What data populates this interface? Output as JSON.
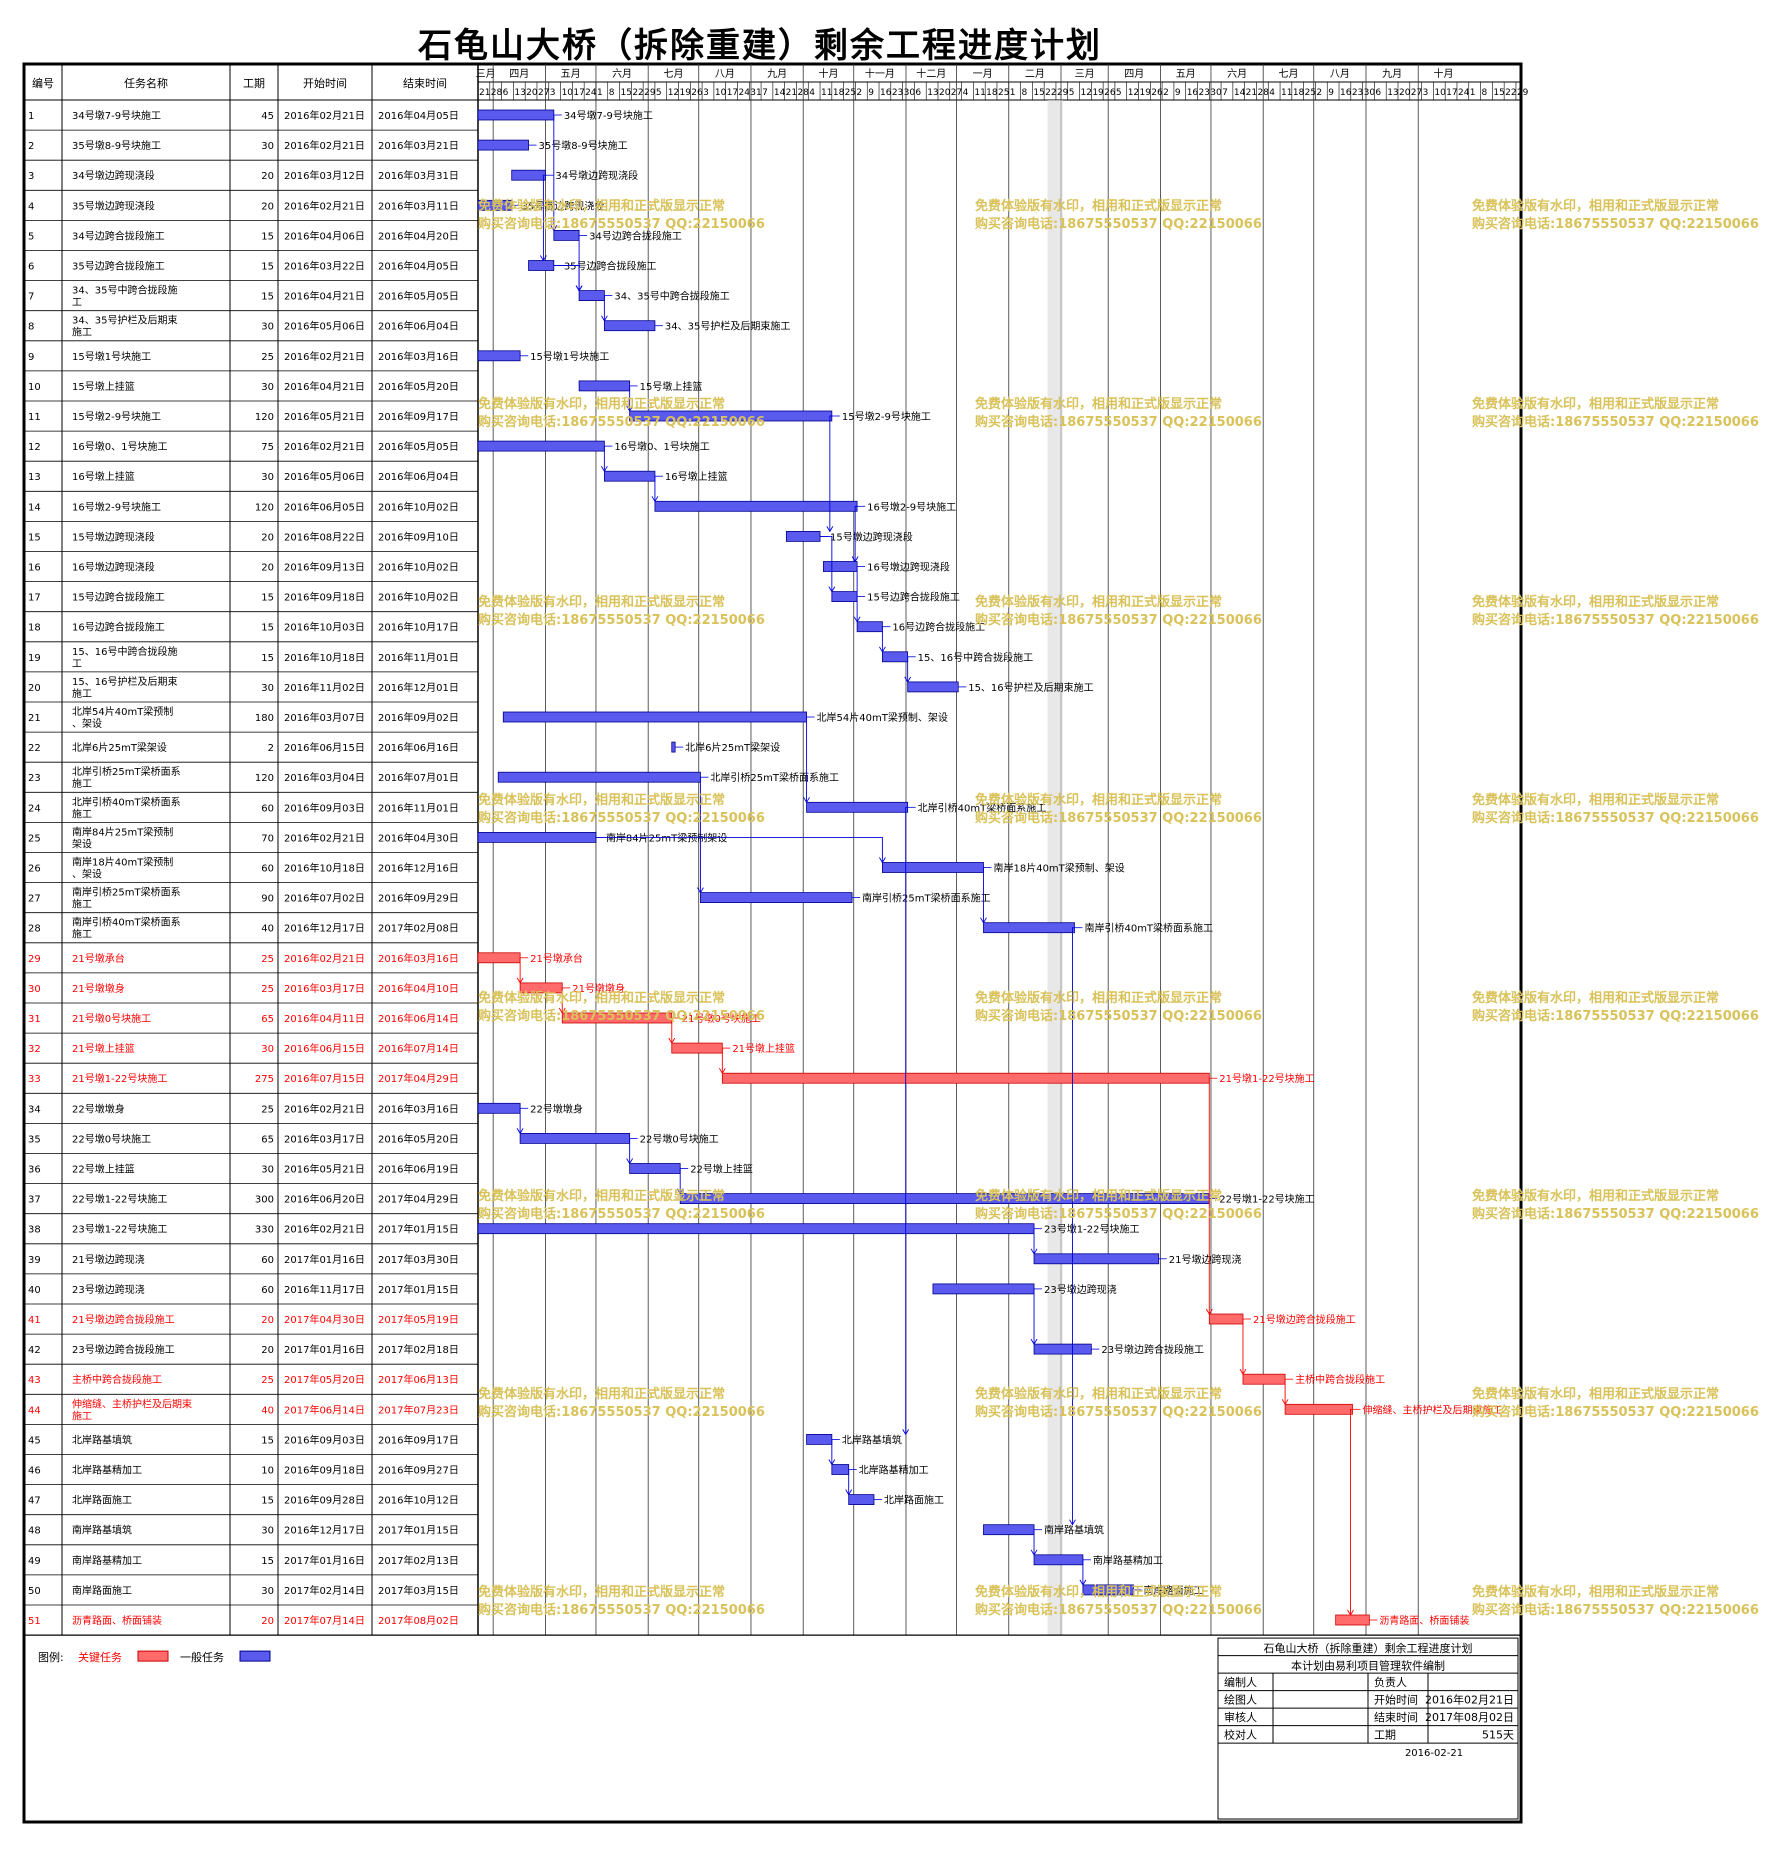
{
  "title": "石龟山大桥（拆除重建）剩余工程进度计划",
  "header": {
    "id": "编号",
    "name": "任务名称",
    "duration": "工期",
    "start": "开始时间",
    "end": "结束时间"
  },
  "months": [
    "三月",
    "四月",
    "五月",
    "六月",
    "七月",
    "八月",
    "九月",
    "十月",
    "十一月",
    "十二月",
    "一月",
    "二月",
    "三月",
    "四月",
    "五月",
    "六月",
    "七月",
    "八月",
    "九月",
    "十月"
  ],
  "watermark": {
    "line1": "免费体验版有水印，相用和正式版显示正常",
    "line2": "购买咨询电话:18675550537 QQ:22150066"
  },
  "legend": {
    "label": "图例:",
    "critical": "关键任务",
    "normal": "一般任务"
  },
  "colors": {
    "critical": "#ff6b6b",
    "normal": "#5a5aee",
    "link": "#0000dd",
    "critical_text": "#ff0000"
  },
  "info_box": {
    "title": "石龟山大桥（拆除重建）剩余工程进度计划",
    "subtitle": "本计划由易利项目管理软件编制",
    "rows": [
      [
        "编制人",
        "",
        "负责人",
        ""
      ],
      [
        "绘图人",
        "",
        "开始时间",
        "2016年02月21日"
      ],
      [
        "审核人",
        "",
        "结束时间",
        "2017年08月02日"
      ],
      [
        "校对人",
        "",
        "工期",
        "515天"
      ]
    ],
    "date": "2016-02-21"
  },
  "chart_data": {
    "type": "gantt",
    "title": "石龟山大桥（拆除重建）剩余工程进度计划",
    "x_range": [
      "2016-02-21",
      "2017-10-31"
    ],
    "tasks": [
      {
        "id": "1",
        "name": "34号墩7-9号块施工",
        "duration": 45,
        "start": "2016年02月21日",
        "end": "2016年04月05日",
        "critical": false
      },
      {
        "id": "2",
        "name": "35号墩8-9号块施工",
        "duration": 30,
        "start": "2016年02月21日",
        "end": "2016年03月21日",
        "critical": false
      },
      {
        "id": "3",
        "name": "34号墩边跨现浇段",
        "duration": 20,
        "start": "2016年03月12日",
        "end": "2016年03月31日",
        "critical": false
      },
      {
        "id": "4",
        "name": "35号墩边跨现浇段",
        "duration": 20,
        "start": "2016年02月21日",
        "end": "2016年03月11日",
        "critical": false
      },
      {
        "id": "5",
        "name": "34号边跨合拢段施工",
        "duration": 15,
        "start": "2016年04月06日",
        "end": "2016年04月20日",
        "critical": false
      },
      {
        "id": "6",
        "name": "35号边跨合拢段施工",
        "duration": 15,
        "start": "2016年03月22日",
        "end": "2016年04月05日",
        "critical": false
      },
      {
        "id": "7",
        "name": "34、35号中跨合拢段施工",
        "duration": 15,
        "start": "2016年04月21日",
        "end": "2016年05月05日",
        "critical": false
      },
      {
        "id": "8",
        "name": "34、35号护栏及后期束施工",
        "duration": 30,
        "start": "2016年05月06日",
        "end": "2016年06月04日",
        "critical": false
      },
      {
        "id": "9",
        "name": "15号墩1号块施工",
        "duration": 25,
        "start": "2016年02月21日",
        "end": "2016年03月16日",
        "critical": false
      },
      {
        "id": "10",
        "name": "15号墩上挂篮",
        "duration": 30,
        "start": "2016年04月21日",
        "end": "2016年05月20日",
        "critical": false
      },
      {
        "id": "11",
        "name": "15号墩2-9号块施工",
        "duration": 120,
        "start": "2016年05月21日",
        "end": "2016年09月17日",
        "critical": false
      },
      {
        "id": "12",
        "name": "16号墩0、1号块施工",
        "duration": 75,
        "start": "2016年02月21日",
        "end": "2016年05月05日",
        "critical": false
      },
      {
        "id": "13",
        "name": "16号墩上挂篮",
        "duration": 30,
        "start": "2016年05月06日",
        "end": "2016年06月04日",
        "critical": false
      },
      {
        "id": "14",
        "name": "16号墩2-9号块施工",
        "duration": 120,
        "start": "2016年06月05日",
        "end": "2016年10月02日",
        "critical": false
      },
      {
        "id": "15",
        "name": "15号墩边跨现浇段",
        "duration": 20,
        "start": "2016年08月22日",
        "end": "2016年09月10日",
        "critical": false
      },
      {
        "id": "16",
        "name": "16号墩边跨现浇段",
        "duration": 20,
        "start": "2016年09月13日",
        "end": "2016年10月02日",
        "critical": false
      },
      {
        "id": "17",
        "name": "15号边跨合拢段施工",
        "duration": 15,
        "start": "2016年09月18日",
        "end": "2016年10月02日",
        "critical": false
      },
      {
        "id": "18",
        "name": "16号边跨合拢段施工",
        "duration": 15,
        "start": "2016年10月03日",
        "end": "2016年10月17日",
        "critical": false
      },
      {
        "id": "19",
        "name": "15、16号中跨合拢段施工",
        "duration": 15,
        "start": "2016年10月18日",
        "end": "2016年11月01日",
        "critical": false
      },
      {
        "id": "20",
        "name": "15、16号护栏及后期束施工",
        "duration": 30,
        "start": "2016年11月02日",
        "end": "2016年12月01日",
        "critical": false
      },
      {
        "id": "21",
        "name": "北岸54片40mT梁预制、架设",
        "duration": 180,
        "start": "2016年03月07日",
        "end": "2016年09月02日",
        "critical": false
      },
      {
        "id": "22",
        "name": "北岸6片25mT梁架设",
        "duration": 2,
        "start": "2016年06月15日",
        "end": "2016年06月16日",
        "critical": false
      },
      {
        "id": "23",
        "name": "北岸引桥25mT梁桥面系施工",
        "duration": 120,
        "start": "2016年03月04日",
        "end": "2016年07月01日",
        "critical": false
      },
      {
        "id": "24",
        "name": "北岸引桥40mT梁桥面系施工",
        "duration": 60,
        "start": "2016年09月03日",
        "end": "2016年11月01日",
        "critical": false
      },
      {
        "id": "25",
        "name": "南岸84片25mT梁预制架设",
        "duration": 70,
        "start": "2016年02月21日",
        "end": "2016年04月30日",
        "critical": false
      },
      {
        "id": "26",
        "name": "南岸18片40mT梁预制、架设",
        "duration": 60,
        "start": "2016年10月18日",
        "end": "2016年12月16日",
        "critical": false
      },
      {
        "id": "27",
        "name": "南岸引桥25mT梁桥面系施工",
        "duration": 90,
        "start": "2016年07月02日",
        "end": "2016年09月29日",
        "critical": false
      },
      {
        "id": "28",
        "name": "南岸引桥40mT梁桥面系施工",
        "duration": 40,
        "start": "2016年12月17日",
        "end": "2017年02月08日",
        "critical": false
      },
      {
        "id": "29",
        "name": "21号墩承台",
        "duration": 25,
        "start": "2016年02月21日",
        "end": "2016年03月16日",
        "critical": true
      },
      {
        "id": "30",
        "name": "21号墩墩身",
        "duration": 25,
        "start": "2016年03月17日",
        "end": "2016年04月10日",
        "critical": true
      },
      {
        "id": "31",
        "name": "21号墩0号块施工",
        "duration": 65,
        "start": "2016年04月11日",
        "end": "2016年06月14日",
        "critical": true
      },
      {
        "id": "32",
        "name": "21号墩上挂篮",
        "duration": 30,
        "start": "2016年06月15日",
        "end": "2016年07月14日",
        "critical": true
      },
      {
        "id": "33",
        "name": "21号墩1-22号块施工",
        "duration": 275,
        "start": "2016年07月15日",
        "end": "2017年04月29日",
        "critical": true
      },
      {
        "id": "34",
        "name": "22号墩墩身",
        "duration": 25,
        "start": "2016年02月21日",
        "end": "2016年03月16日",
        "critical": false
      },
      {
        "id": "35",
        "name": "22号墩0号块施工",
        "duration": 65,
        "start": "2016年03月17日",
        "end": "2016年05月20日",
        "critical": false
      },
      {
        "id": "36",
        "name": "22号墩上挂篮",
        "duration": 30,
        "start": "2016年05月21日",
        "end": "2016年06月19日",
        "critical": false
      },
      {
        "id": "37",
        "name": "22号墩1-22号块施工",
        "duration": 300,
        "start": "2016年06月20日",
        "end": "2017年04月29日",
        "critical": false
      },
      {
        "id": "38",
        "name": "23号墩1-22号块施工",
        "duration": 330,
        "start": "2016年02月21日",
        "end": "2017年01月15日",
        "critical": false
      },
      {
        "id": "39",
        "name": "21号墩边跨现浇",
        "duration": 60,
        "start": "2017年01月16日",
        "end": "2017年03月30日",
        "critical": false
      },
      {
        "id": "40",
        "name": "23号墩边跨现浇",
        "duration": 60,
        "start": "2016年11月17日",
        "end": "2017年01月15日",
        "critical": false
      },
      {
        "id": "41",
        "name": "21号墩边跨合拢段施工",
        "duration": 20,
        "start": "2017年04月30日",
        "end": "2017年05月19日",
        "critical": true
      },
      {
        "id": "42",
        "name": "23号墩边跨合拢段施工",
        "duration": 20,
        "start": "2017年01月16日",
        "end": "2017年02月18日",
        "critical": false
      },
      {
        "id": "43",
        "name": "主桥中跨合拢段施工",
        "duration": 25,
        "start": "2017年05月20日",
        "end": "2017年06月13日",
        "critical": true
      },
      {
        "id": "44",
        "name": "伸缩缝、主桥护栏及后期束施工",
        "duration": 40,
        "start": "2017年06月14日",
        "end": "2017年07月23日",
        "critical": true
      },
      {
        "id": "45",
        "name": "北岸路基填筑",
        "duration": 15,
        "start": "2016年09月03日",
        "end": "2016年09月17日",
        "critical": false
      },
      {
        "id": "46",
        "name": "北岸路基精加工",
        "duration": 10,
        "start": "2016年09月18日",
        "end": "2016年09月27日",
        "critical": false
      },
      {
        "id": "47",
        "name": "北岸路面施工",
        "duration": 15,
        "start": "2016年09月28日",
        "end": "2016年10月12日",
        "critical": false
      },
      {
        "id": "48",
        "name": "南岸路基填筑",
        "duration": 30,
        "start": "2016年12月17日",
        "end": "2017年01月15日",
        "critical": false
      },
      {
        "id": "49",
        "name": "南岸路基精加工",
        "duration": 15,
        "start": "2017年01月16日",
        "end": "2017年02月13日",
        "critical": false
      },
      {
        "id": "50",
        "name": "南岸路面施工",
        "duration": 30,
        "start": "2017年02月14日",
        "end": "2017年03月15日",
        "critical": false
      },
      {
        "id": "51",
        "name": "沥青路面、桥面铺装",
        "duration": 20,
        "start": "2017年07月14日",
        "end": "2017年08月02日",
        "critical": true
      }
    ]
  }
}
